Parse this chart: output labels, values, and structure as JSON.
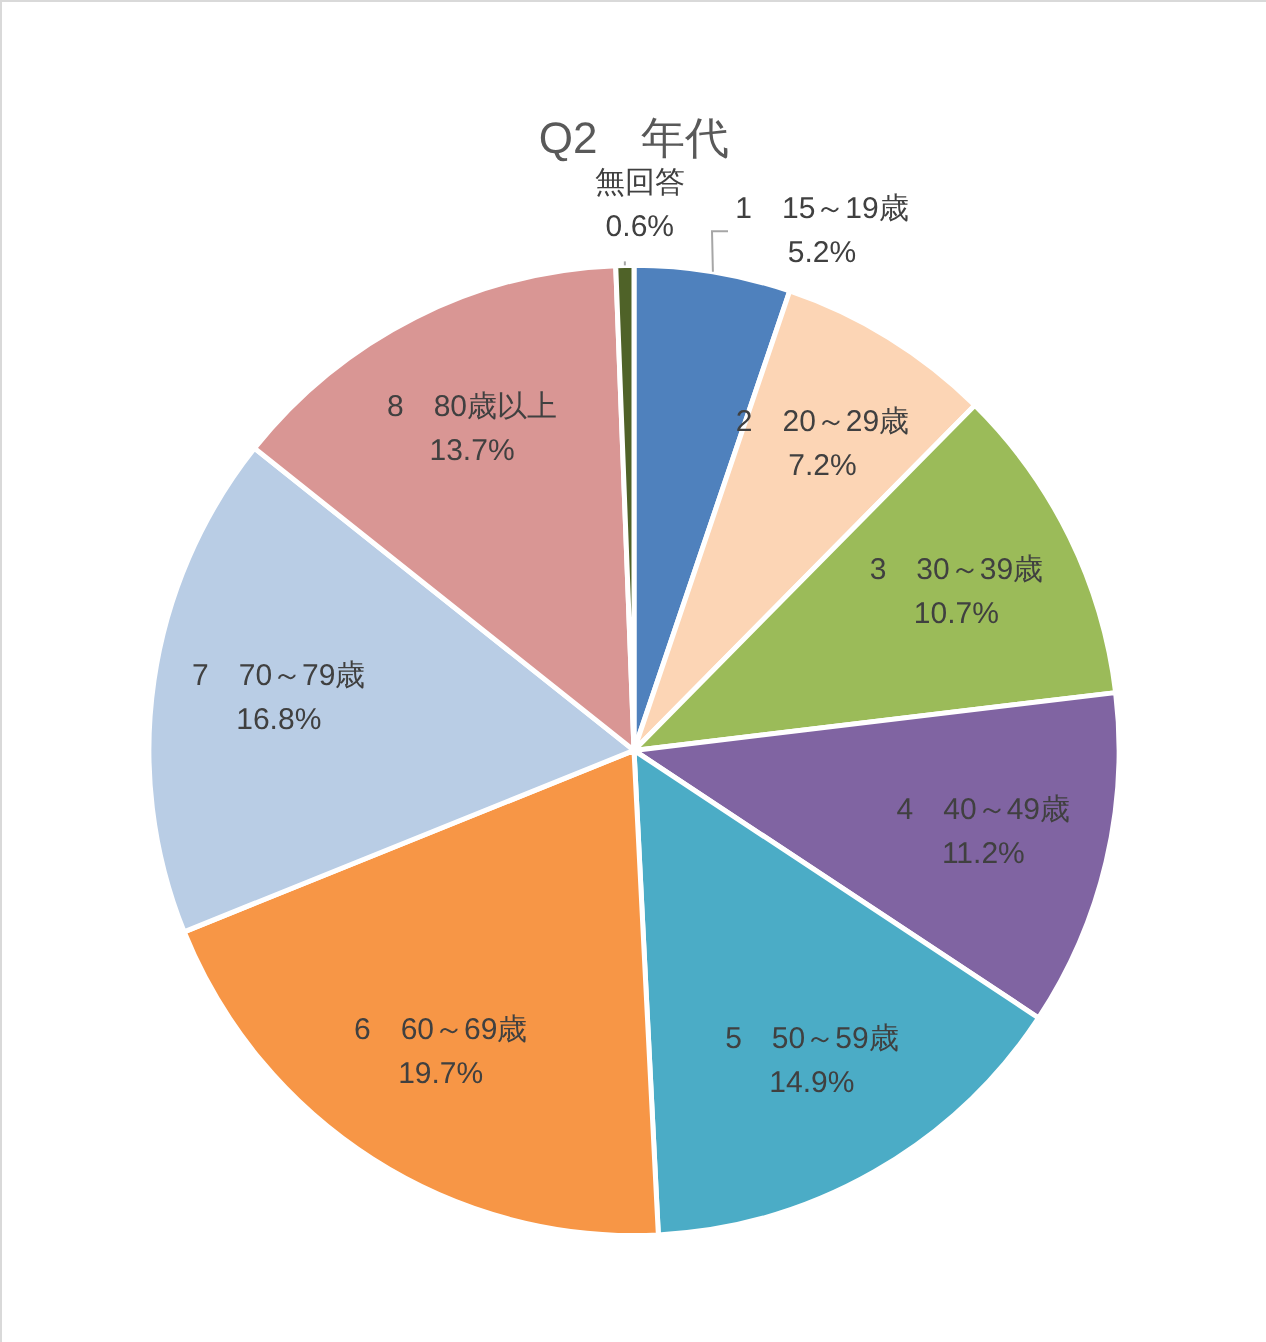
{
  "chart_data": {
    "type": "pie",
    "title": "Q2　年代",
    "categories": [
      "1　15～19歳",
      "2　20～29歳",
      "3　30～39歳",
      "4　40～49歳",
      "5　50～59歳",
      "6　60～69歳",
      "7　70～79歳",
      "8　80歳以上",
      "無回答"
    ],
    "values": [
      5.2,
      7.2,
      10.7,
      11.2,
      14.9,
      19.7,
      16.8,
      13.7,
      0.6
    ],
    "colors": [
      "#4f81bd",
      "#fcd5b5",
      "#9bbb59",
      "#8064a2",
      "#4bacc6",
      "#f79646",
      "#b9cde5",
      "#d99694",
      "#4f6228"
    ],
    "value_labels": [
      "5.2%",
      "7.2%",
      "10.7%",
      "11.2%",
      "14.9%",
      "19.7%",
      "16.8%",
      "13.7%",
      "0.6%"
    ],
    "legend": false
  }
}
